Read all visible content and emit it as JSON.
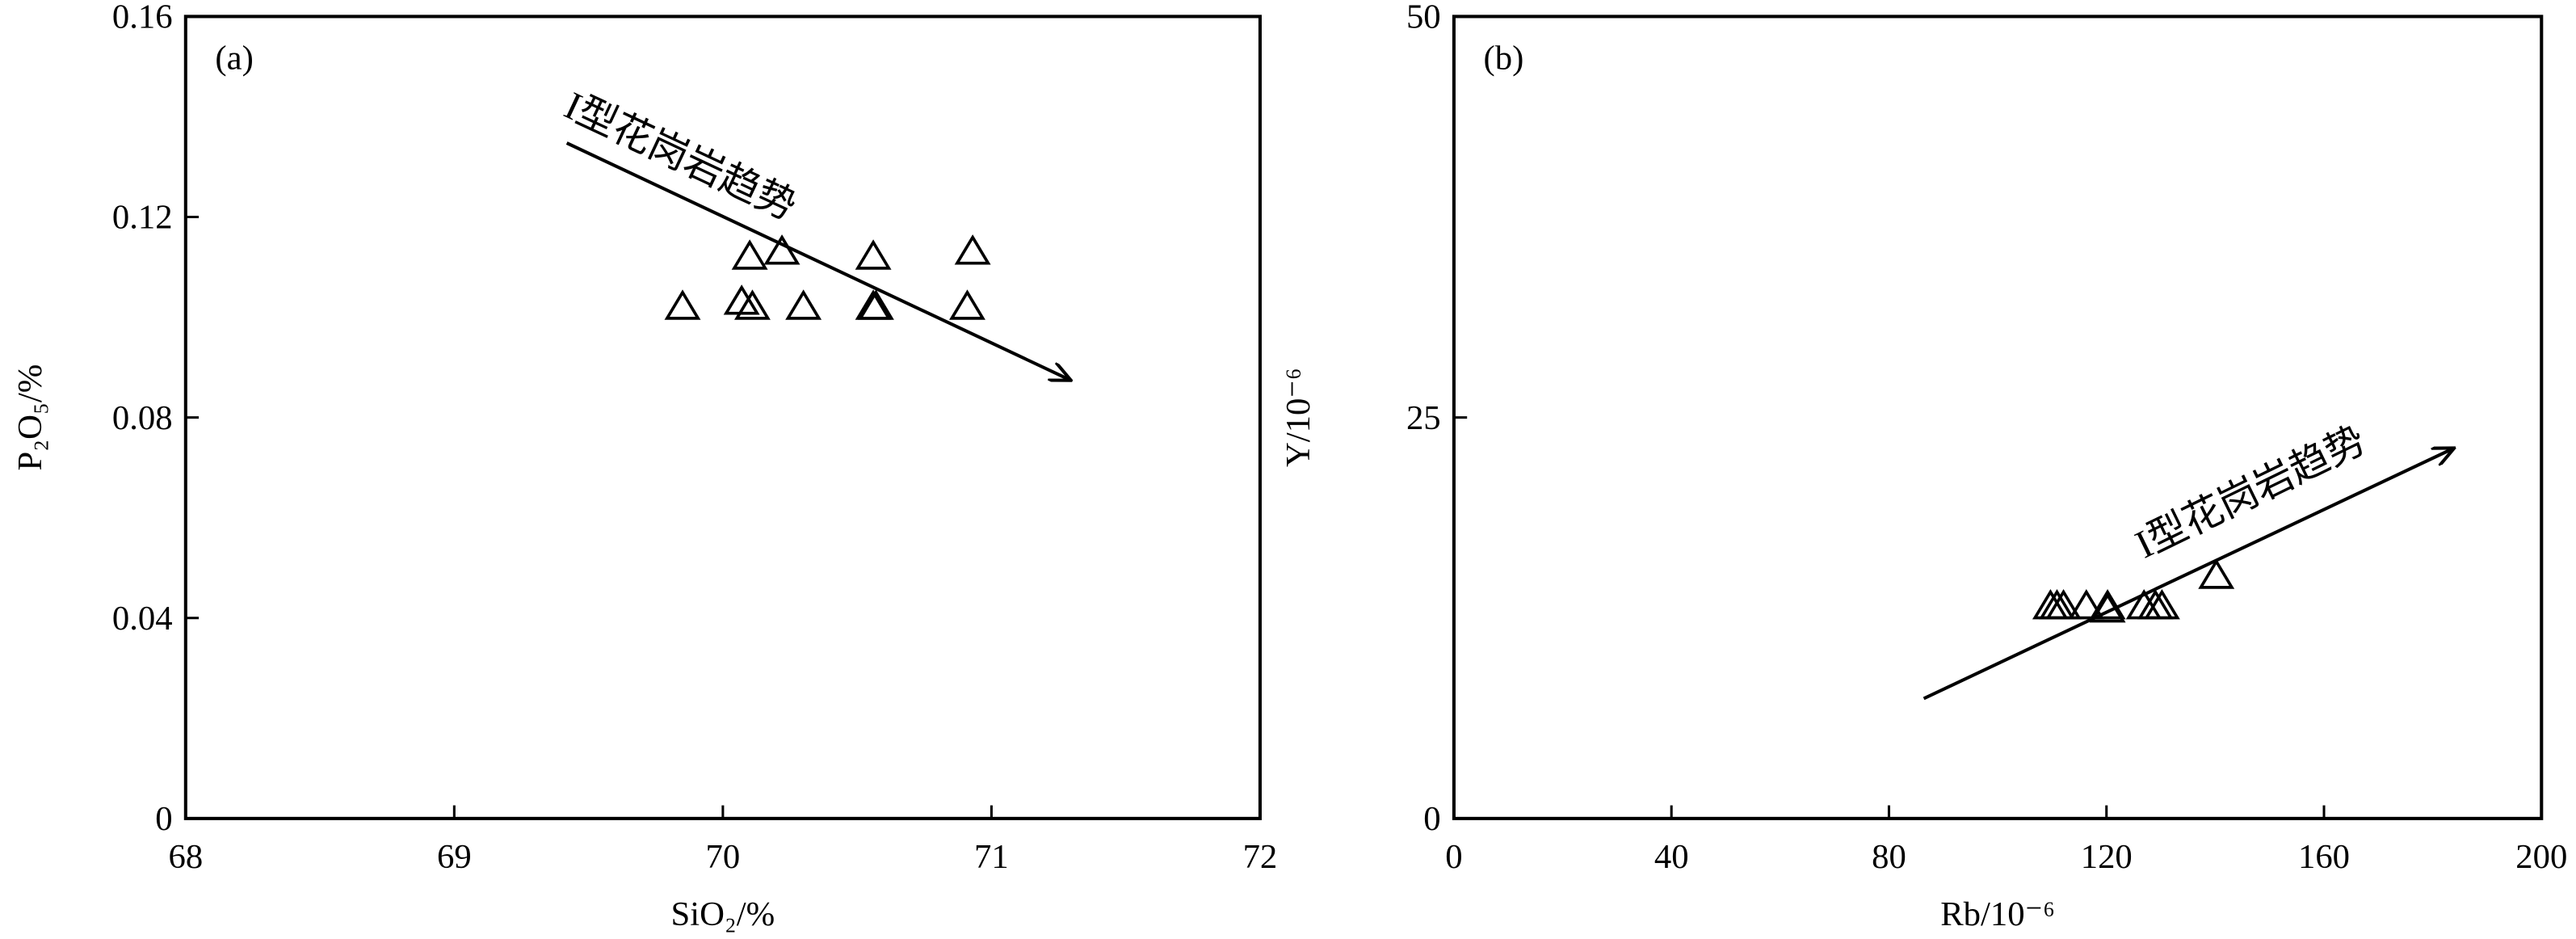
{
  "chart_data": [
    {
      "type": "scatter",
      "panel_label": "(a)",
      "x_label": "SiO₂/%",
      "y_label": "P₂O₅/%",
      "annotation": "I型花岗岩趋势",
      "x": [
        69.85,
        70.07,
        70.11,
        70.1,
        70.22,
        70.3,
        70.56,
        70.56,
        70.57,
        70.91,
        70.93
      ],
      "values": [
        0.102,
        0.103,
        0.102,
        0.112,
        0.113,
        0.102,
        0.112,
        0.102,
        0.102,
        0.102,
        0.113
      ],
      "color": "#000000",
      "xlim": [
        68,
        72
      ],
      "xticks": [
        68,
        69,
        70,
        71,
        72
      ],
      "ylim": [
        0,
        0.16
      ],
      "yticks": [
        0,
        0.04,
        0.08,
        0.12,
        0.16
      ],
      "grid": false
    },
    {
      "type": "scatter",
      "panel_label": "(b)",
      "x_label": "Rb/10⁻⁶",
      "y_label": "Y/10⁻⁶",
      "annotation": "I型花岗岩趋势",
      "x": [
        109.7,
        110.9,
        112.1,
        116.3,
        120.2,
        120.2,
        126.9,
        129.0,
        130.2,
        140.2
      ],
      "values": [
        13.2,
        13.2,
        13.2,
        13.2,
        13.0,
        13.2,
        13.2,
        13.2,
        13.2,
        15.1
      ],
      "color": "#000000",
      "xlim": [
        0,
        200
      ],
      "xticks": [
        0,
        40,
        80,
        120,
        160,
        200
      ],
      "ylim": [
        0,
        50
      ],
      "yticks": [
        0,
        25,
        50
      ],
      "grid": false
    }
  ]
}
